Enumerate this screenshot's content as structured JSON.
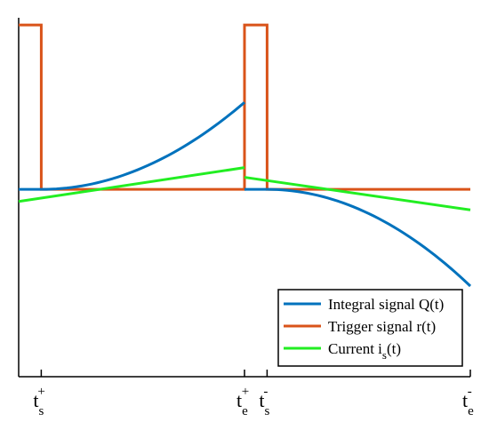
{
  "chart_data": {
    "type": "line",
    "title": "",
    "xlabel": "",
    "ylabel": "",
    "grid": false,
    "legend_position": "bottom-right",
    "x_ticks": [
      {
        "base": "t",
        "sub": "s",
        "sup": "+",
        "x": 1
      },
      {
        "base": "t",
        "sub": "e",
        "sup": "+",
        "x": 10
      },
      {
        "base": "t",
        "sub": "s",
        "sup": "-",
        "x": 11
      },
      {
        "base": "t",
        "sub": "e",
        "sup": "-",
        "x": 20
      }
    ],
    "xlim": [
      0,
      20
    ],
    "ylim": [
      -1.55,
      1.42
    ],
    "series": [
      {
        "name": "Integral signal Q(t)",
        "color": "#0072BD",
        "segments": [
          {
            "kind": "const",
            "x0": 0,
            "x1": 1,
            "y": 0
          },
          {
            "kind": "quad_up",
            "x0": 1,
            "x1": 10,
            "y0": 0,
            "y1": 0.72
          },
          {
            "kind": "const",
            "x0": 10,
            "x1": 11,
            "y": 0
          },
          {
            "kind": "quad_down",
            "x0": 11,
            "x1": 20,
            "y0": 0,
            "y1": -0.8
          }
        ]
      },
      {
        "name": "Trigger signal r(t)",
        "color": "#D95319",
        "points": [
          [
            0,
            1.36
          ],
          [
            1,
            1.36
          ],
          [
            1,
            0
          ],
          [
            10,
            0
          ],
          [
            10,
            1.36
          ],
          [
            11,
            1.36
          ],
          [
            11,
            0
          ],
          [
            20,
            0
          ]
        ]
      },
      {
        "name": "Current i_s(t)",
        "color": "#22EE22",
        "segments": [
          {
            "x0": 0,
            "y0": -0.1,
            "x1": 10,
            "y1": 0.18
          },
          {
            "x0": 10,
            "y0": 0.1,
            "x1": 20,
            "y1": -0.17
          }
        ]
      }
    ],
    "legend": [
      {
        "label": "Integral signal Q(t)",
        "color": "#0072BD"
      },
      {
        "label": "Trigger signal r(t)",
        "color": "#D95319"
      },
      {
        "label_main": "Current i",
        "label_sub": "s",
        "label_tail": "(t)",
        "color": "#22EE22"
      }
    ]
  }
}
